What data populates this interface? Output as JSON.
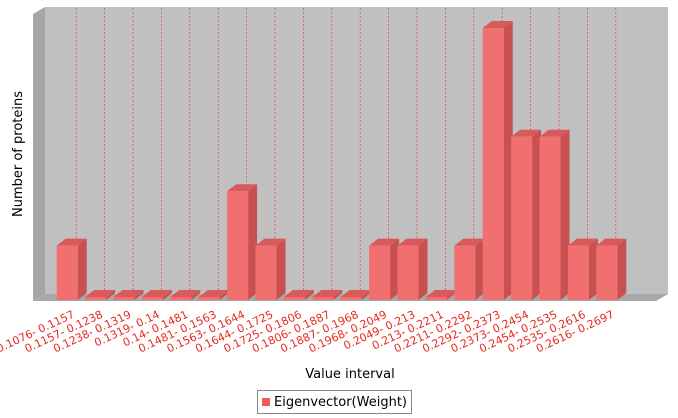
{
  "chart_data": {
    "type": "bar",
    "style": "3d",
    "title": "",
    "xlabel": "Value interval",
    "ylabel": "Number of proteins",
    "categories": [
      "0.1076- 0.1157",
      "0.1157- 0.1238",
      "0.1238- 0.1319",
      "0.1319- 0.14",
      "0.14- 0.1481",
      "0.1481- 0.1563",
      "0.1563- 0.1644",
      "0.1644- 0.1725",
      "0.1725- 0.1806",
      "0.1806- 0.1887",
      "0.1887- 0.1968",
      "0.1968- 0.2049",
      "0.2049- 0.213",
      "0.213- 0.2211",
      "0.2211- 0.2292",
      "0.2292- 0.2373",
      "0.2373- 0.2454",
      "0.2454- 0.2535",
      "0.2535- 0.2616",
      "0.2616- 0.2697"
    ],
    "series": [
      {
        "name": "Eigenvector(Weight)",
        "color": "#f05a5a",
        "values": [
          1,
          0,
          0,
          0,
          0,
          0,
          2,
          1,
          0,
          0,
          0,
          1,
          1,
          0,
          1,
          5,
          3,
          3,
          1,
          1
        ]
      }
    ],
    "ylim": [
      0,
      5
    ],
    "grid": "vertical-dashed",
    "legend": "bottom",
    "colors": {
      "plot_background": "#c0c0c0",
      "gridline": "#e05050",
      "tick_label": "#e8281e",
      "bar": "#f07070"
    }
  }
}
